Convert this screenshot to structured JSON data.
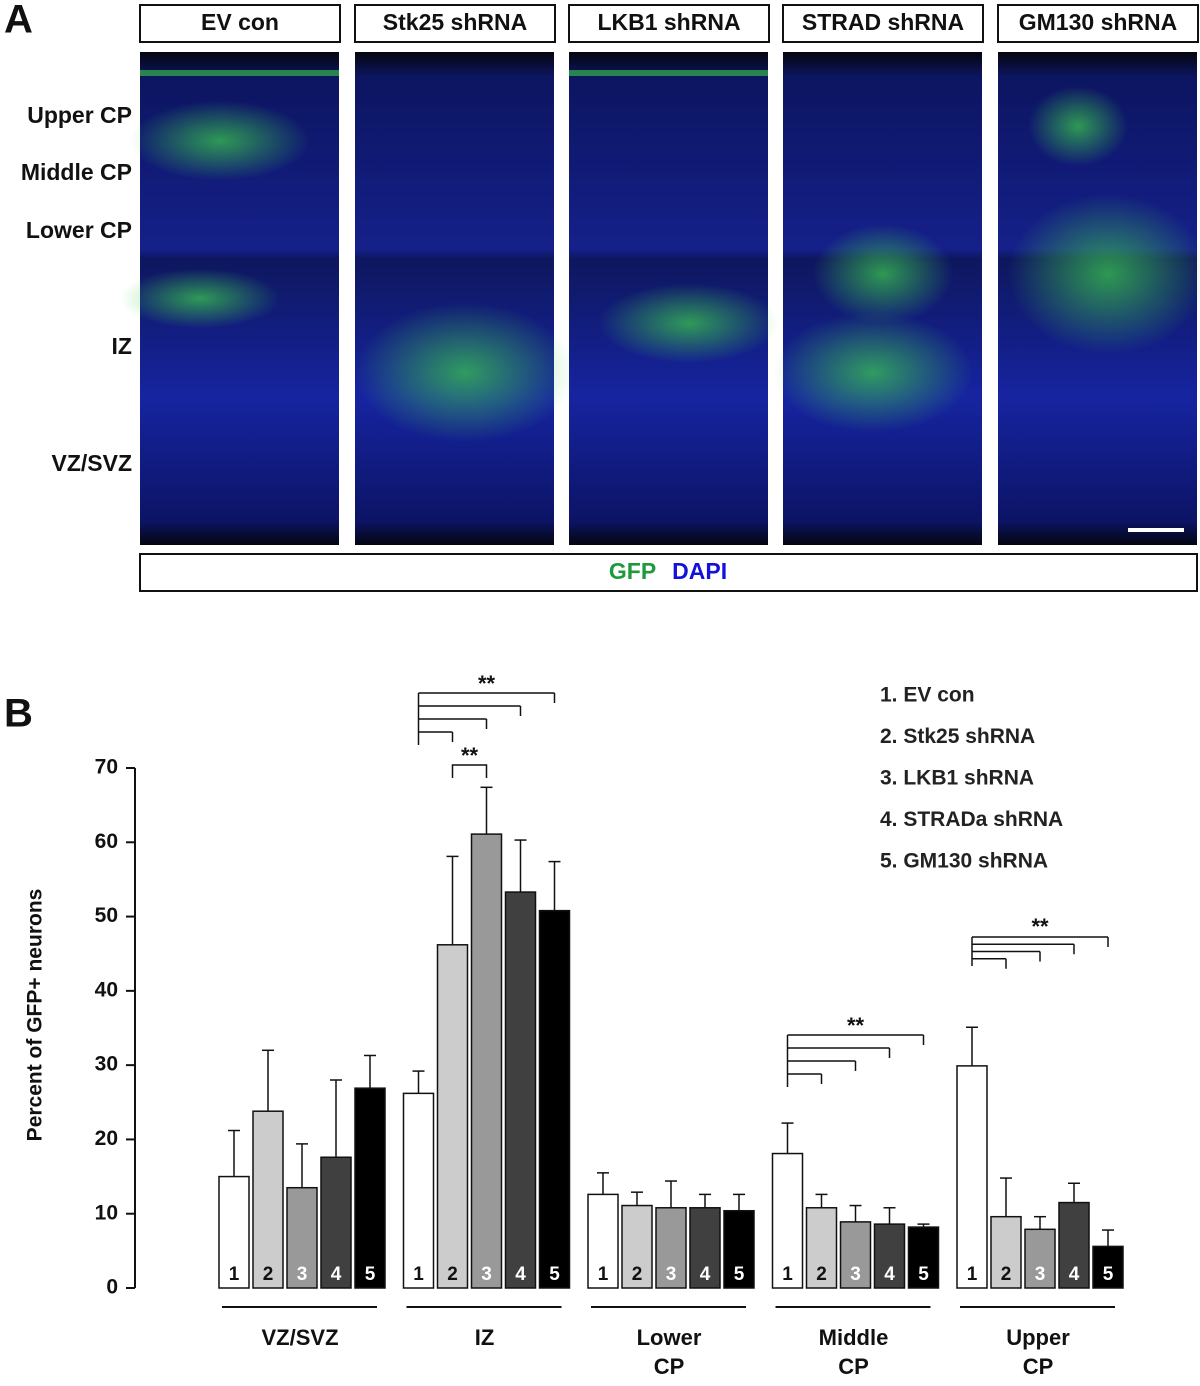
{
  "panel_a": {
    "letter": "A",
    "columns": [
      "EV con",
      "Stk25 shRNA",
      "LKB1 shRNA",
      "STRAD shRNA",
      "GM130 shRNA"
    ],
    "rows": [
      "Upper CP",
      "Middle CP",
      "Lower CP",
      "IZ",
      "VZ/SVZ"
    ],
    "stain": [
      {
        "text": "GFP",
        "color": "#1e9a3c"
      },
      {
        "text": "DAPI",
        "color": "#1212d8"
      }
    ]
  },
  "chart_data": {
    "type": "bar",
    "letter": "B",
    "ylabel": "Percent of GFP+ neurons",
    "categories": [
      "VZ/SVZ",
      "IZ",
      "Lower CP",
      "Middle CP",
      "Upper CP"
    ],
    "ylim": [
      0,
      70
    ],
    "yticks": [
      0,
      10,
      20,
      30,
      40,
      50,
      60,
      70
    ],
    "series": [
      {
        "name": "1. EV con",
        "label": "1",
        "color": "#ffffff",
        "label_color": "#111111",
        "values": [
          15,
          26.2,
          12.6,
          18.1,
          29.9
        ],
        "errors": [
          6.2,
          3,
          2.9,
          4.1,
          5.2
        ]
      },
      {
        "name": "2. Stk25 shRNA",
        "label": "2",
        "color": "#cccccc",
        "label_color": "#111111",
        "values": [
          23.8,
          46.2,
          11.1,
          10.8,
          9.6
        ],
        "errors": [
          8.2,
          11.9,
          1.8,
          1.8,
          5.2
        ]
      },
      {
        "name": "3. LKB1 shRNA",
        "label": "3",
        "color": "#999999",
        "label_color": "#ffffff",
        "values": [
          13.5,
          61.1,
          10.8,
          8.9,
          7.9
        ],
        "errors": [
          5.9,
          6.3,
          3.6,
          2.2,
          1.7
        ]
      },
      {
        "name": "4. STRADa shRNA",
        "label": "4",
        "color": "#404040",
        "label_color": "#ffffff",
        "values": [
          17.6,
          53.3,
          10.8,
          8.6,
          11.5
        ],
        "errors": [
          10.4,
          7,
          1.8,
          2.2,
          2.6
        ]
      },
      {
        "name": "5. GM130 shRNA",
        "label": "5",
        "color": "#000000",
        "label_color": "#ffffff",
        "values": [
          26.9,
          50.8,
          10.4,
          8.2,
          5.6
        ],
        "errors": [
          4.4,
          6.6,
          2.2,
          0.4,
          2.2
        ]
      }
    ],
    "annotations": [
      {
        "text": "**",
        "category": 1,
        "from": 0,
        "to": [
          1,
          2,
          3,
          4
        ]
      },
      {
        "text": "**",
        "category": 1,
        "from": 1,
        "to": [
          2
        ]
      },
      {
        "text": "**",
        "category": 3,
        "from": 0,
        "to": [
          1,
          2,
          3,
          4
        ]
      },
      {
        "text": "**",
        "category": 4,
        "from": 0,
        "to": [
          1,
          2,
          3,
          4
        ]
      }
    ]
  }
}
